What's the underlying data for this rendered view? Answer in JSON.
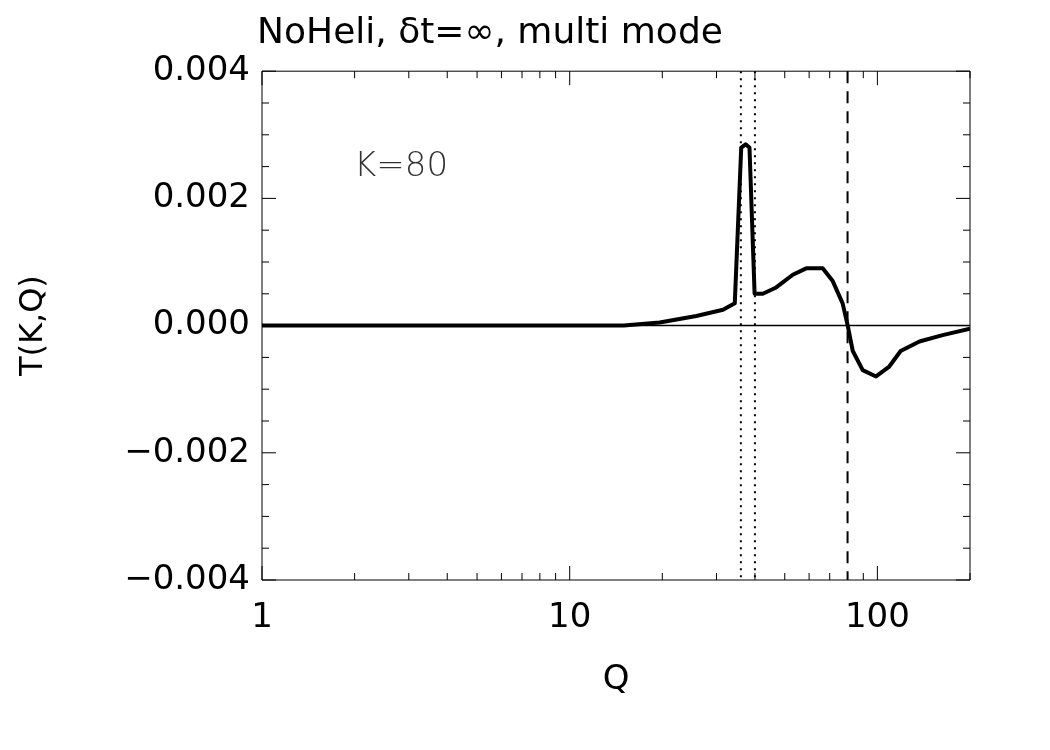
{
  "chart_data": {
    "type": "line",
    "title": "NoHeli, δt=∞, multi mode",
    "xlabel": "Q",
    "ylabel": "T(K,Q)",
    "annotations": [
      "K=80"
    ],
    "log": "x",
    "grid": false,
    "legend": false,
    "marker": "none",
    "line_style": "solid",
    "xlim": [
      1,
      200
    ],
    "ylim": [
      -0.004,
      0.004
    ],
    "xticks": [
      1,
      {
        "value": 2,
        "label": null
      },
      {
        "value": 3,
        "label": null
      },
      {
        "value": 4,
        "label": null
      },
      {
        "value": 5,
        "label": null
      },
      {
        "value": 6,
        "label": null
      },
      {
        "value": 7,
        "label": null
      },
      {
        "value": 8,
        "label": null
      },
      {
        "value": 9,
        "label": null
      },
      10,
      {
        "value": 20,
        "label": null
      },
      {
        "value": 30,
        "label": null
      },
      {
        "value": 40,
        "label": null
      },
      {
        "value": 50,
        "label": null
      },
      {
        "value": 60,
        "label": null
      },
      {
        "value": 70,
        "label": null
      },
      {
        "value": 80,
        "label": null
      },
      {
        "value": 90,
        "label": null
      },
      100,
      {
        "value": 200,
        "label": null
      }
    ],
    "yticks": [
      {
        "value": -0.004,
        "label": "−0.004"
      },
      {
        "value": -0.0035,
        "label": null
      },
      {
        "value": -0.003,
        "label": null
      },
      {
        "value": -0.0025,
        "label": null
      },
      {
        "value": -0.002,
        "label": "−0.002"
      },
      {
        "value": -0.0015,
        "label": null
      },
      {
        "value": -0.001,
        "label": null
      },
      {
        "value": -0.0005,
        "label": null
      },
      {
        "value": 0,
        "label": "0.000"
      },
      {
        "value": 0.0005,
        "label": null
      },
      {
        "value": 0.001,
        "label": null
      },
      {
        "value": 0.0015,
        "label": null
      },
      {
        "value": 0.002,
        "label": "0.002"
      },
      {
        "value": 0.0025,
        "label": null
      },
      {
        "value": 0.003,
        "label": null
      },
      {
        "value": 0.0035,
        "label": null
      },
      {
        "value": 0.004,
        "label": "0.004"
      }
    ],
    "ref_lines": [
      {
        "axis": "y",
        "value": 0,
        "line_style": "solid"
      },
      {
        "axis": "x",
        "value": 36,
        "line_style": "dotted"
      },
      {
        "axis": "x",
        "value": 40,
        "line_style": "dotted"
      },
      {
        "axis": "x",
        "value": 80,
        "line_style": "dashed"
      }
    ],
    "series": [
      {
        "color": "#000000",
        "x": [
          1,
          3,
          6,
          10,
          15,
          19.6,
          25.8,
          31.5,
          34.4,
          36.1,
          37.3,
          38.4,
          39.9,
          42.4,
          46.9,
          53.1,
          58.7,
          66.4,
          71.6,
          77.1,
          80.1,
          83.2,
          89.6,
          99,
          109,
          119,
          137,
          163,
          200
        ],
        "values": [
          0,
          0,
          0,
          0,
          0,
          5e-05,
          0.00015,
          0.00025,
          0.00035,
          0.0028,
          0.00285,
          0.0028,
          0.0005,
          0.0005,
          0.0006,
          0.0008,
          0.0009,
          0.0009,
          0.0007,
          0.00035,
          0,
          -0.0004,
          -0.0007,
          -0.0008,
          -0.00065,
          -0.0004,
          -0.00025,
          -0.00015,
          -5e-05
        ]
      }
    ]
  }
}
